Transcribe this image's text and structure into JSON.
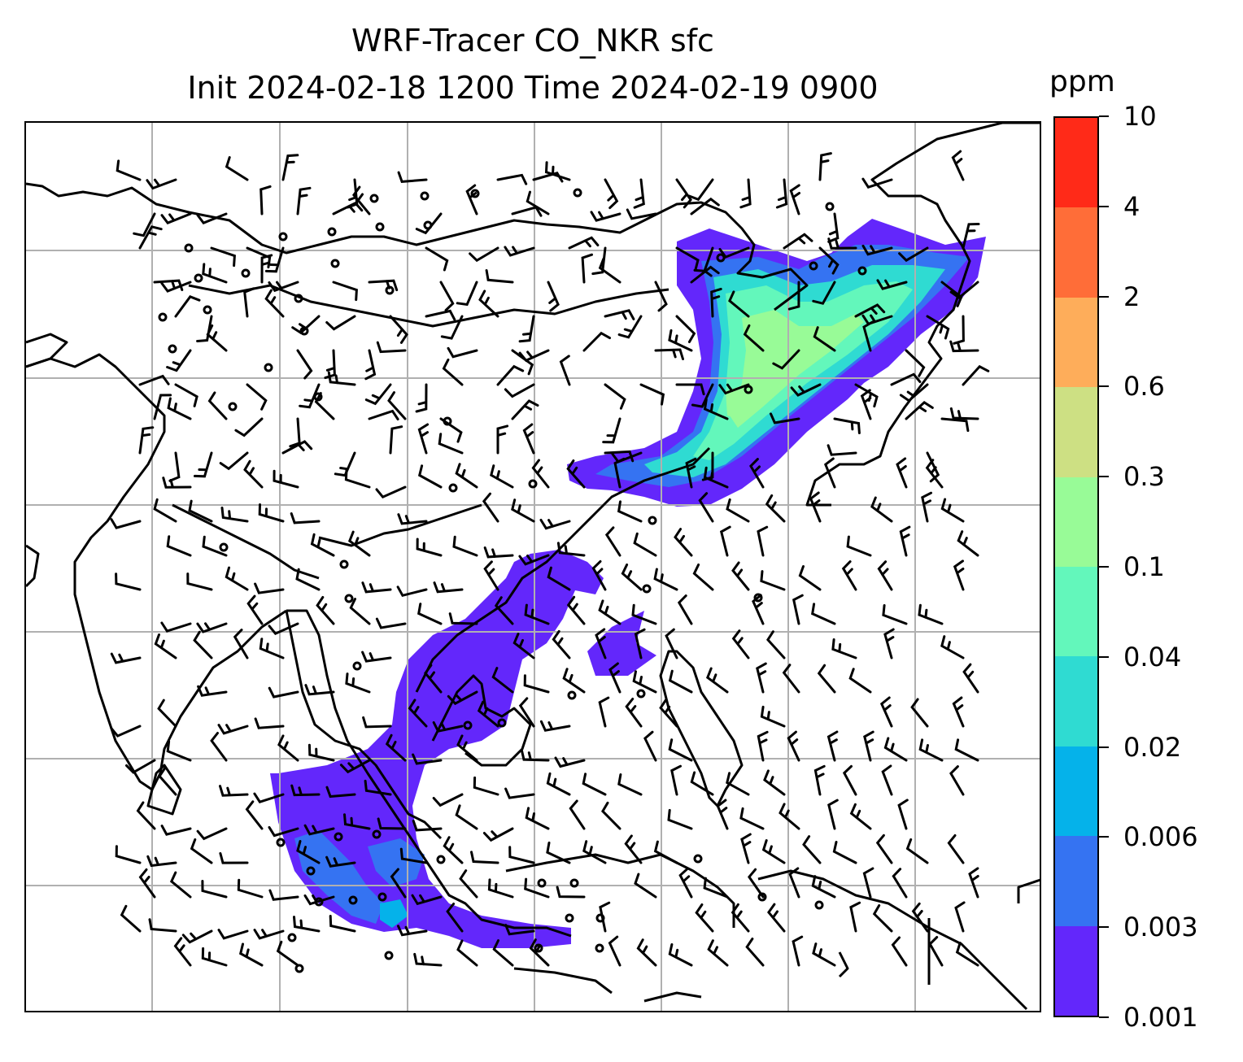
{
  "title": {
    "line1": "WRF-Tracer CO_NKR sfc",
    "line2": "Init 2024-02-18 1200 Time 2024-02-19 0900"
  },
  "map": {
    "projection_style": "lat-lon grid with coastlines and country borders",
    "gridlines": true,
    "features": [
      "wind-barbs",
      "calm-wind-circles",
      "tracer-plume-north",
      "tracer-plume-south"
    ]
  },
  "colorbar": {
    "unit": "ppm",
    "levels": [
      "0.001",
      "0.003",
      "0.006",
      "0.02",
      "0.04",
      "0.1",
      "0.3",
      "0.6",
      "2",
      "4",
      "10"
    ],
    "colors": [
      "#6327fb",
      "#3573f2",
      "#05b2ea",
      "#2fdbd2",
      "#63f7bb",
      "#98fb97",
      "#cde083",
      "#fead5a",
      "#ff6d38",
      "#ff2a18"
    ]
  }
}
